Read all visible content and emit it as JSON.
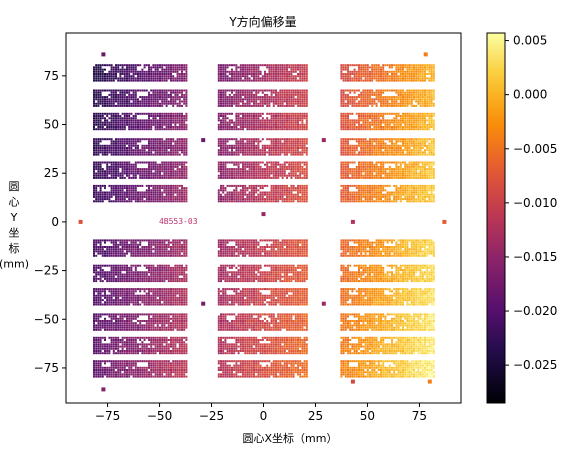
{
  "chart_data": {
    "type": "scatter",
    "title": "Y方向偏移量",
    "xlabel": "圆心X坐标（mm）",
    "ylabel_chars": [
      "圆",
      "心",
      "Y",
      "坐",
      "标",
      "(mm)"
    ],
    "xlim": [
      -95,
      95
    ],
    "ylim": [
      -93,
      97
    ],
    "xticks": [
      -75,
      -50,
      -25,
      0,
      25,
      50,
      75
    ],
    "xtick_labels": [
      "−75",
      "−50",
      "−25",
      "0",
      "25",
      "50",
      "75"
    ],
    "yticks": [
      -75,
      -50,
      -25,
      0,
      25,
      50,
      75
    ],
    "ytick_labels": [
      "−75",
      "−50",
      "−25",
      "0",
      "25",
      "50",
      "75"
    ],
    "grid": false,
    "colorbar": {
      "colormap": "inferno",
      "vmin": -0.0285,
      "vmax": 0.0057,
      "ticks": [
        0.005,
        0.0,
        -0.005,
        -0.01,
        -0.015,
        -0.02,
        -0.025
      ],
      "tick_labels": [
        "0.005",
        "0.000",
        "−0.005",
        "−0.010",
        "−0.015",
        "−0.020",
        "−0.025"
      ]
    },
    "annotation": {
      "text": "4B553-03",
      "x": -41,
      "y": 0.5
    },
    "die_columns": [
      {
        "x_min": -82,
        "x_max": -37,
        "value_left": -0.024,
        "value_right": -0.016
      },
      {
        "x_min": -22,
        "x_max": 21,
        "value_left": -0.017,
        "value_right": -0.01
      },
      {
        "x_min": 37,
        "x_max": 82,
        "value_left": -0.009,
        "value_right": 0.0
      }
    ],
    "die_rows_y_center": [
      77,
      64,
      52,
      39,
      27,
      15,
      -13,
      -26,
      -38,
      -51,
      -63,
      -75
    ],
    "die_row_height": 8,
    "value_gradient_down": 0.005,
    "extra_points": [
      {
        "x": -77,
        "y": 86,
        "value": -0.018
      },
      {
        "x": 78,
        "y": 86,
        "value": -0.004
      },
      {
        "x": -77,
        "y": -86,
        "value": -0.016
      },
      {
        "x": -88,
        "y": 0,
        "value": -0.008
      },
      {
        "x": 87,
        "y": 0,
        "value": -0.007
      },
      {
        "x": 43,
        "y": 0,
        "value": -0.012
      },
      {
        "x": 0,
        "y": 4,
        "value": -0.014
      },
      {
        "x": -29,
        "y": 42,
        "value": -0.018
      },
      {
        "x": 29,
        "y": 42,
        "value": -0.014
      },
      {
        "x": -29,
        "y": -42,
        "value": -0.017
      },
      {
        "x": 29,
        "y": -42,
        "value": -0.014
      },
      {
        "x": 43,
        "y": -82,
        "value": -0.009
      },
      {
        "x": 80,
        "y": -82,
        "value": -0.004
      }
    ]
  }
}
